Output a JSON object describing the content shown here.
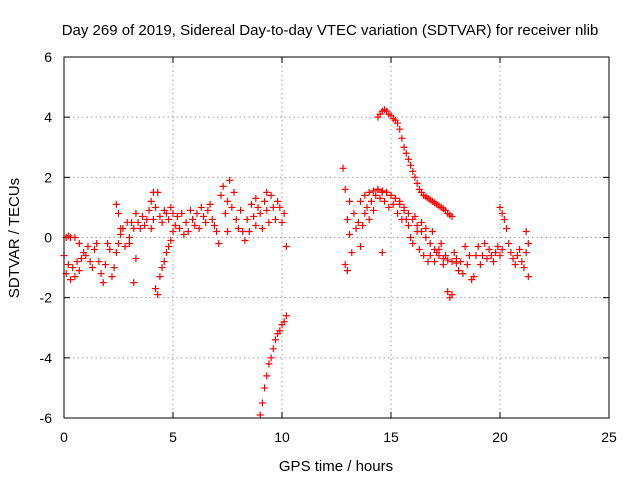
{
  "chart_data": {
    "type": "scatter",
    "title": "Day 269 of 2019, Sidereal Day-to-day VTEC variation (SDTVAR) for receiver nlib",
    "xlabel": "GPS time / hours",
    "ylabel": "SDTVAR / TECUs",
    "xlim": [
      0,
      25
    ],
    "ylim": [
      -6,
      6
    ],
    "xticks": [
      0,
      5,
      10,
      15,
      20,
      25
    ],
    "yticks": [
      -6,
      -4,
      -2,
      0,
      2,
      4,
      6
    ],
    "grid": true,
    "marker": "+",
    "series": [
      {
        "name": "SDTVAR",
        "color": "#ff0000",
        "points": [
          [
            0.0,
            -0.6
          ],
          [
            0.1,
            -1.2
          ],
          [
            0.1,
            0.0
          ],
          [
            0.2,
            -0.9
          ],
          [
            0.2,
            0.05
          ],
          [
            0.3,
            -1.4
          ],
          [
            0.3,
            0.0
          ],
          [
            0.4,
            -1.0
          ],
          [
            0.5,
            -1.3
          ],
          [
            0.5,
            0.0
          ],
          [
            0.6,
            -0.8
          ],
          [
            0.7,
            -1.1
          ],
          [
            0.7,
            -0.2
          ],
          [
            0.8,
            -0.7
          ],
          [
            0.9,
            -0.5
          ],
          [
            1.0,
            -0.6
          ],
          [
            1.1,
            -0.3
          ],
          [
            1.2,
            -0.8
          ],
          [
            1.3,
            -1.0
          ],
          [
            1.4,
            -0.4
          ],
          [
            1.5,
            -0.2
          ],
          [
            1.6,
            -0.8
          ],
          [
            1.7,
            -1.2
          ],
          [
            1.8,
            -1.5
          ],
          [
            1.9,
            -0.9
          ],
          [
            2.0,
            -0.2
          ],
          [
            2.1,
            -0.4
          ],
          [
            2.2,
            -1.3
          ],
          [
            2.3,
            -1.0
          ],
          [
            2.4,
            -0.5
          ],
          [
            2.5,
            -0.2
          ],
          [
            2.6,
            0.1
          ],
          [
            2.7,
            0.3
          ],
          [
            2.8,
            -0.3
          ],
          [
            2.9,
            0.5
          ],
          [
            3.0,
            -0.2
          ],
          [
            3.0,
            0.0
          ],
          [
            2.4,
            1.1
          ],
          [
            2.5,
            0.8
          ],
          [
            2.6,
            0.3
          ],
          [
            3.1,
            0.5
          ],
          [
            3.2,
            -1.5
          ],
          [
            3.2,
            0.3
          ],
          [
            3.3,
            -0.7
          ],
          [
            3.3,
            0.8
          ],
          [
            3.4,
            0.5
          ],
          [
            3.5,
            0.3
          ],
          [
            3.6,
            0.7
          ],
          [
            3.7,
            0.4
          ],
          [
            3.8,
            0.6
          ],
          [
            3.9,
            0.9
          ],
          [
            4.0,
            0.3
          ],
          [
            4.0,
            1.2
          ],
          [
            4.1,
            0.6
          ],
          [
            4.1,
            1.5
          ],
          [
            4.2,
            -1.7
          ],
          [
            4.2,
            1.0
          ],
          [
            4.3,
            -1.9
          ],
          [
            4.3,
            1.5
          ],
          [
            4.4,
            -1.3
          ],
          [
            4.4,
            0.7
          ],
          [
            4.5,
            -1.0
          ],
          [
            4.5,
            0.5
          ],
          [
            4.6,
            -0.8
          ],
          [
            4.6,
            0.9
          ],
          [
            4.7,
            -0.5
          ],
          [
            4.7,
            0.8
          ],
          [
            4.8,
            -0.3
          ],
          [
            4.8,
            0.6
          ],
          [
            4.9,
            -0.1
          ],
          [
            4.9,
            1.0
          ],
          [
            5.0,
            0.2
          ],
          [
            5.0,
            0.8
          ],
          [
            5.1,
            0.4
          ],
          [
            5.2,
            0.7
          ],
          [
            5.3,
            0.3
          ],
          [
            5.4,
            0.8
          ],
          [
            5.5,
            0.1
          ],
          [
            5.6,
            0.5
          ],
          [
            5.7,
            0.2
          ],
          [
            5.8,
            0.9
          ],
          [
            5.9,
            0.6
          ],
          [
            6.0,
            0.4
          ],
          [
            6.1,
            0.8
          ],
          [
            6.2,
            0.3
          ],
          [
            6.3,
            1.0
          ],
          [
            6.4,
            0.7
          ],
          [
            6.5,
            0.5
          ],
          [
            6.6,
            0.9
          ],
          [
            6.7,
            1.1
          ],
          [
            6.8,
            0.6
          ],
          [
            6.9,
            0.4
          ],
          [
            7.0,
            0.2
          ],
          [
            7.1,
            -0.2
          ],
          [
            7.2,
            1.4
          ],
          [
            7.3,
            1.7
          ],
          [
            7.4,
            0.8
          ],
          [
            7.5,
            1.2
          ],
          [
            7.5,
            0.2
          ],
          [
            7.6,
            1.9
          ],
          [
            7.7,
            1.0
          ],
          [
            7.8,
            1.5
          ],
          [
            7.9,
            0.6
          ],
          [
            8.0,
            0.3
          ],
          [
            8.1,
            0.9
          ],
          [
            8.2,
            0.2
          ],
          [
            8.3,
            -0.1
          ],
          [
            8.4,
            0.6
          ],
          [
            8.5,
            0.2
          ],
          [
            8.6,
            1.1
          ],
          [
            8.7,
            0.7
          ],
          [
            8.8,
            0.4
          ],
          [
            8.9,
            1.0
          ],
          [
            9.0,
            0.8
          ],
          [
            9.1,
            0.3
          ],
          [
            9.2,
            1.2
          ],
          [
            9.3,
            0.9
          ],
          [
            9.4,
            0.5
          ],
          [
            9.5,
            1.4
          ],
          [
            9.6,
            1.0
          ],
          [
            9.7,
            0.6
          ],
          [
            9.8,
            1.2
          ],
          [
            9.9,
            1.0
          ],
          [
            10.0,
            0.5
          ],
          [
            10.1,
            0.8
          ],
          [
            10.2,
            -0.3
          ],
          [
            9.3,
            1.5
          ],
          [
            8.8,
            1.3
          ],
          [
            9.0,
            -5.9
          ],
          [
            9.1,
            -5.5
          ],
          [
            9.2,
            -5.0
          ],
          [
            9.3,
            -4.6
          ],
          [
            9.4,
            -4.2
          ],
          [
            9.5,
            -4.0
          ],
          [
            9.6,
            -3.7
          ],
          [
            9.7,
            -3.4
          ],
          [
            9.8,
            -3.2
          ],
          [
            9.9,
            -3.1
          ],
          [
            10.0,
            -2.9
          ],
          [
            10.1,
            -2.8
          ],
          [
            10.2,
            -2.6
          ],
          [
            12.8,
            2.3
          ],
          [
            12.9,
            1.6
          ],
          [
            12.9,
            -0.9
          ],
          [
            13.0,
            -1.1
          ],
          [
            13.0,
            0.6
          ],
          [
            13.1,
            0.1
          ],
          [
            13.1,
            1.2
          ],
          [
            13.2,
            -0.5
          ],
          [
            13.3,
            0.8
          ],
          [
            13.4,
            0.3
          ],
          [
            13.5,
            0.5
          ],
          [
            13.6,
            -0.3
          ],
          [
            13.7,
            0.4
          ],
          [
            13.8,
            0.8
          ],
          [
            13.9,
            1.0
          ],
          [
            14.0,
            0.6
          ],
          [
            14.1,
            1.2
          ],
          [
            14.2,
            0.9
          ],
          [
            14.3,
            1.4
          ],
          [
            14.4,
            1.6
          ],
          [
            14.5,
            1.3
          ],
          [
            14.6,
            -0.5
          ],
          [
            14.6,
            1.5
          ],
          [
            14.7,
            1.2
          ],
          [
            14.8,
            1.5
          ],
          [
            14.9,
            1.0
          ],
          [
            15.0,
            1.4
          ],
          [
            15.1,
            1.1
          ],
          [
            15.2,
            1.3
          ],
          [
            15.3,
            0.8
          ],
          [
            15.4,
            1.1
          ],
          [
            15.5,
            0.6
          ],
          [
            15.6,
            0.9
          ],
          [
            15.7,
            0.6
          ],
          [
            15.8,
            0.4
          ],
          [
            15.9,
            0.0
          ],
          [
            16.0,
            -0.2
          ],
          [
            16.1,
            0.7
          ],
          [
            16.2,
            0.2
          ],
          [
            16.3,
            -0.4
          ],
          [
            16.4,
            0.5
          ],
          [
            16.5,
            -0.6
          ],
          [
            16.6,
            0.3
          ],
          [
            16.7,
            -0.8
          ],
          [
            16.8,
            -0.6
          ],
          [
            16.9,
            0.2
          ],
          [
            17.0,
            -0.8
          ],
          [
            17.1,
            -0.5
          ],
          [
            17.2,
            -0.4
          ],
          [
            17.3,
            -0.2
          ],
          [
            17.4,
            -0.9
          ],
          [
            17.5,
            -0.6
          ],
          [
            17.6,
            -1.8
          ],
          [
            17.7,
            -2.0
          ],
          [
            17.8,
            -1.9
          ],
          [
            17.9,
            -0.5
          ],
          [
            18.0,
            -0.7
          ],
          [
            18.1,
            -1.1
          ],
          [
            18.2,
            -0.8
          ],
          [
            18.3,
            -1.2
          ],
          [
            18.4,
            -0.3
          ],
          [
            18.5,
            -0.9
          ],
          [
            18.6,
            -0.6
          ],
          [
            18.7,
            -1.4
          ],
          [
            18.8,
            -1.3
          ],
          [
            18.9,
            -0.6
          ],
          [
            19.0,
            -0.3
          ],
          [
            19.1,
            -0.9
          ],
          [
            19.2,
            -0.6
          ],
          [
            19.3,
            -0.2
          ],
          [
            19.4,
            -0.7
          ],
          [
            19.5,
            -0.4
          ],
          [
            19.6,
            -0.6
          ],
          [
            19.7,
            -0.8
          ],
          [
            19.8,
            -0.5
          ],
          [
            19.9,
            -0.3
          ],
          [
            20.0,
            -0.6
          ],
          [
            20.1,
            -0.4
          ],
          [
            20.0,
            1.0
          ],
          [
            20.1,
            0.8
          ],
          [
            20.2,
            0.6
          ],
          [
            20.3,
            0.3
          ],
          [
            20.4,
            -0.2
          ],
          [
            20.5,
            -0.5
          ],
          [
            20.6,
            -0.7
          ],
          [
            20.7,
            -0.9
          ],
          [
            20.8,
            -0.6
          ],
          [
            20.9,
            -0.4
          ],
          [
            21.0,
            -0.8
          ],
          [
            21.1,
            -1.0
          ],
          [
            21.2,
            -0.5
          ],
          [
            21.2,
            0.2
          ],
          [
            21.3,
            -1.3
          ],
          [
            21.3,
            -0.2
          ],
          [
            14.4,
            4.0
          ],
          [
            14.5,
            4.1
          ],
          [
            14.6,
            4.2
          ],
          [
            14.7,
            4.25
          ],
          [
            14.8,
            4.2
          ],
          [
            14.9,
            4.1
          ],
          [
            15.0,
            4.05
          ],
          [
            15.1,
            3.95
          ],
          [
            15.2,
            3.9
          ],
          [
            15.3,
            3.8
          ],
          [
            15.4,
            3.6
          ],
          [
            15.5,
            3.3
          ],
          [
            15.6,
            3.0
          ],
          [
            15.7,
            2.8
          ],
          [
            15.8,
            2.6
          ],
          [
            15.9,
            2.4
          ],
          [
            16.0,
            2.2
          ],
          [
            16.1,
            2.0
          ],
          [
            16.2,
            1.8
          ],
          [
            16.3,
            1.6
          ],
          [
            16.4,
            1.5
          ],
          [
            16.5,
            1.4
          ],
          [
            16.6,
            1.35
          ],
          [
            16.7,
            1.3
          ],
          [
            16.8,
            1.25
          ],
          [
            16.9,
            1.2
          ],
          [
            17.0,
            1.15
          ],
          [
            17.1,
            1.1
          ],
          [
            17.2,
            1.05
          ],
          [
            17.3,
            1.0
          ],
          [
            17.4,
            0.95
          ],
          [
            17.5,
            0.9
          ],
          [
            17.6,
            0.8
          ],
          [
            17.7,
            0.75
          ],
          [
            17.8,
            0.7
          ],
          [
            13.6,
            1.2
          ],
          [
            13.8,
            1.4
          ],
          [
            14.0,
            1.5
          ],
          [
            14.2,
            1.55
          ],
          [
            14.4,
            1.6
          ],
          [
            14.6,
            1.55
          ],
          [
            14.8,
            1.5
          ],
          [
            15.0,
            1.4
          ],
          [
            15.2,
            1.3
          ],
          [
            15.4,
            1.2
          ],
          [
            15.6,
            1.0
          ],
          [
            15.8,
            0.8
          ],
          [
            16.0,
            0.6
          ],
          [
            16.2,
            0.4
          ],
          [
            16.4,
            0.2
          ],
          [
            16.6,
            0.0
          ],
          [
            16.8,
            -0.2
          ],
          [
            17.0,
            -0.4
          ],
          [
            17.2,
            -0.6
          ],
          [
            17.4,
            -0.7
          ],
          [
            17.6,
            -0.75
          ],
          [
            17.8,
            -0.8
          ],
          [
            18.0,
            -0.85
          ]
        ]
      }
    ]
  }
}
